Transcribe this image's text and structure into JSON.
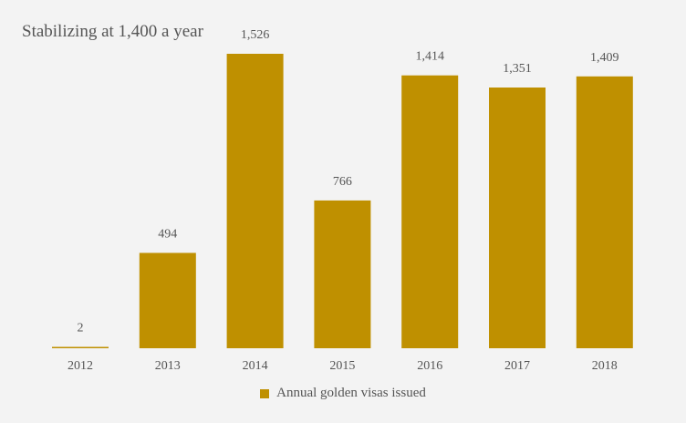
{
  "chart_data": {
    "type": "bar",
    "title": "Stabilizing at 1,400 a year",
    "categories": [
      "2012",
      "2013",
      "2014",
      "2015",
      "2016",
      "2017",
      "2018"
    ],
    "values": [
      2,
      494,
      1526,
      766,
      1414,
      1351,
      1409
    ],
    "value_labels": [
      "2",
      "494",
      "1,526",
      "766",
      "1,414",
      "1,351",
      "1,409"
    ],
    "series": [
      {
        "name": "Annual golden visas issued",
        "values": [
          2,
          494,
          1526,
          766,
          1414,
          1351,
          1409
        ]
      }
    ],
    "xlabel": "",
    "ylabel": "",
    "ylim": [
      0,
      1526
    ],
    "grid": false,
    "legend_position": "bottom",
    "colors": {
      "bar": "#bf9000",
      "text": "#555555",
      "background": "#f3f3f3"
    }
  }
}
